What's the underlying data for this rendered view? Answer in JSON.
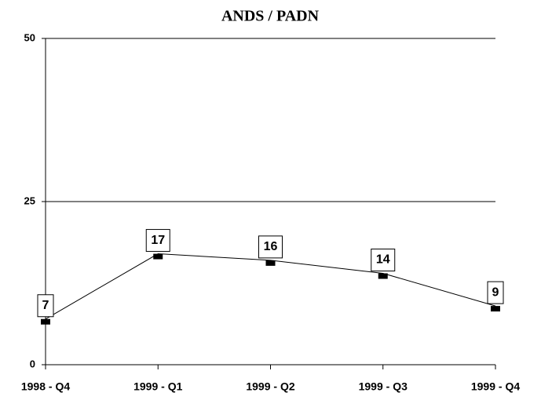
{
  "chart_data": {
    "type": "line",
    "title": "ANDS / PADN",
    "categories": [
      "1998 - Q4",
      "1999 - Q1",
      "1999 - Q2",
      "1999 - Q3",
      "1999 - Q4"
    ],
    "values": [
      7,
      17,
      16,
      14,
      9
    ],
    "color": "#000000",
    "ylim": [
      0,
      50
    ],
    "yticks": [
      0,
      25,
      50
    ],
    "grid": true
  }
}
